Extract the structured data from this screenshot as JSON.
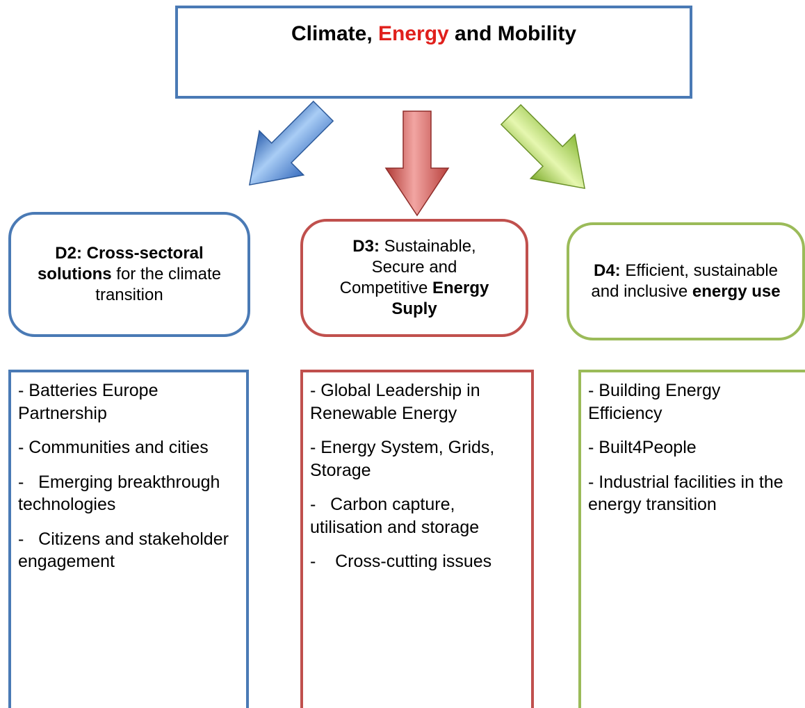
{
  "header": {
    "title": [
      {
        "text": "Climate, ",
        "bold": true
      },
      {
        "text": "Energy",
        "bold": true,
        "color": "#e0201c"
      },
      {
        "text": " and Mobility",
        "bold": true
      }
    ]
  },
  "domains": [
    {
      "color": "#4a7ab5",
      "heading": [
        {
          "text": "D2: Cross-sectoral solutions",
          "bold": true
        },
        {
          "text": " for the climate transition",
          "bold": false
        }
      ],
      "items": [
        "- Batteries Europe Partnership",
        "- Communities and cities",
        "-   Emerging breakthrough technologies",
        "-   Citizens and stakeholder engagement"
      ]
    },
    {
      "color": "#c0504d",
      "heading": [
        {
          "text": "D3:",
          "bold": true
        },
        {
          "text": " Sustainable, Secure and Competitive ",
          "bold": false
        },
        {
          "text": "Energy Suply",
          "bold": true
        }
      ],
      "items": [
        "- Global Leadership in Renewable Energy",
        "- Energy System, Grids, Storage",
        "-   Carbon capture, utilisation and storage",
        "-    Cross-cutting issues"
      ]
    },
    {
      "color": "#9bbb59",
      "heading": [
        {
          "text": "D4:",
          "bold": true
        },
        {
          "text": " Efficient, sustainable and inclusive ",
          "bold": false
        },
        {
          "text": "energy use",
          "bold": true
        }
      ],
      "items": [
        "- Building Energy Efficiency",
        "- Built4People",
        "- Industrial facilities in the energy transition"
      ]
    }
  ]
}
